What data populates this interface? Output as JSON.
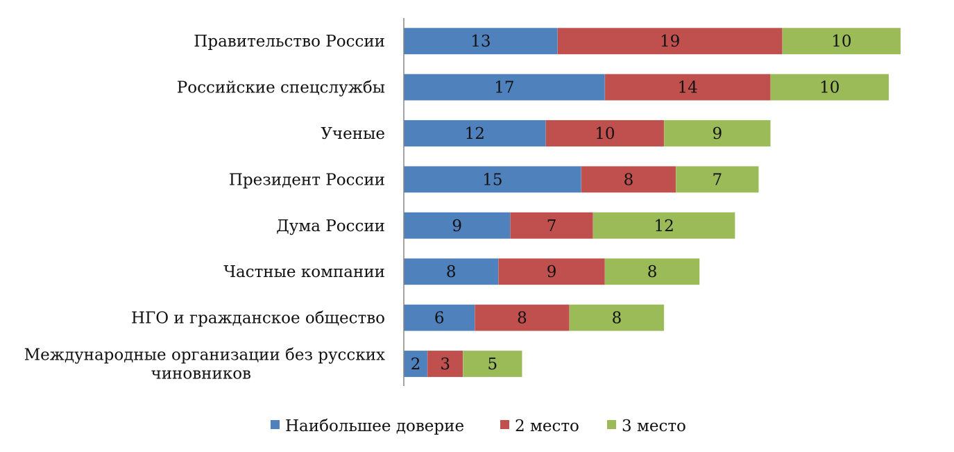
{
  "chart_data": {
    "type": "bar",
    "orientation": "horizontal",
    "stacked": true,
    "title": "",
    "xlabel": "",
    "ylabel": "",
    "grid": false,
    "legend_position": "bottom",
    "categories": [
      "Правительство России",
      "Российские спецслужбы",
      "Ученые",
      "Президент России",
      "Дума России",
      "Частные компании",
      "НГО и гражданское общество",
      "Международные организации без русских чиновников"
    ],
    "category_label_lines": [
      [
        "Правительство России"
      ],
      [
        "Российские спецслужбы"
      ],
      [
        "Ученые"
      ],
      [
        "Президент России"
      ],
      [
        "Дума России"
      ],
      [
        "Частные компании"
      ],
      [
        "НГО и гражданское общество"
      ],
      [
        "Международные организации без русских",
        "чиновников"
      ]
    ],
    "series": [
      {
        "name": "Наибольшее доверие",
        "color": "#4f81bd",
        "values": [
          13,
          17,
          12,
          15,
          9,
          8,
          6,
          2
        ]
      },
      {
        "name": "2 место",
        "color": "#c0504d",
        "values": [
          19,
          14,
          10,
          8,
          7,
          9,
          8,
          3
        ]
      },
      {
        "name": "3 место",
        "color": "#9bbb59",
        "values": [
          10,
          10,
          9,
          7,
          12,
          8,
          8,
          5
        ]
      }
    ],
    "xlim": [
      0,
      42
    ]
  }
}
